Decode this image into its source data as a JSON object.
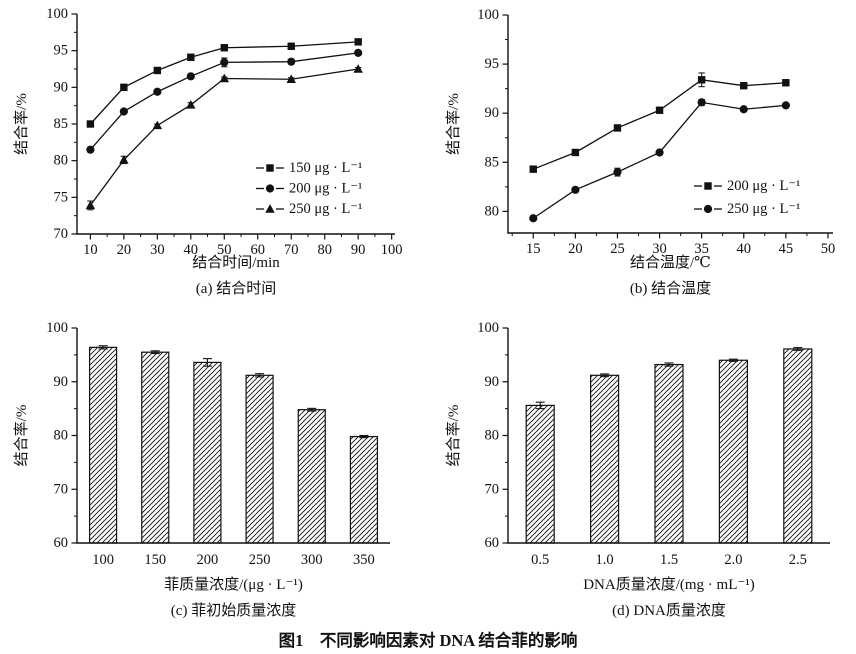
{
  "colors": {
    "ink": "#111111",
    "background": "#ffffff"
  },
  "figure": {
    "caption": "图1　不同影响因素对 DNA 结合菲的影响"
  },
  "chart_data": [
    {
      "id": "a",
      "type": "line",
      "title": "(a) 结合时间",
      "xlabel": "结合时间/min",
      "ylabel": "结合率/%",
      "xlim": [
        6,
        101
      ],
      "ylim": [
        70,
        100
      ],
      "xticks": [
        10,
        20,
        30,
        40,
        50,
        60,
        70,
        80,
        90,
        100
      ],
      "yticks": [
        70,
        75,
        80,
        85,
        90,
        95,
        100
      ],
      "grid": false,
      "legend_position": "lower right",
      "x": [
        10,
        20,
        30,
        40,
        50,
        70,
        90
      ],
      "series": [
        {
          "name": "150 μg · L⁻¹",
          "marker": "square",
          "values": [
            85.0,
            90.0,
            92.3,
            94.1,
            95.4,
            95.6,
            96.2
          ],
          "errors": [
            0.3,
            0.2,
            0.2,
            0.2,
            0.3,
            0.2,
            0.2
          ]
        },
        {
          "name": "200 μg · L⁻¹",
          "marker": "circle",
          "values": [
            81.5,
            86.7,
            89.4,
            91.5,
            93.4,
            93.5,
            94.7
          ],
          "errors": [
            0.2,
            0.2,
            0.2,
            0.2,
            0.6,
            0.2,
            0.2
          ]
        },
        {
          "name": "250 μg · L⁻¹",
          "marker": "triangle",
          "values": [
            73.9,
            80.1,
            84.8,
            87.6,
            91.2,
            91.1,
            92.5
          ],
          "errors": [
            0.6,
            0.5,
            0.2,
            0.3,
            0.2,
            0.2,
            0.2
          ]
        }
      ]
    },
    {
      "id": "b",
      "type": "line",
      "title": "(b) 结合温度",
      "xlabel": "结合温度/℃",
      "ylabel": "结合率/%",
      "xlim": [
        12,
        50.6
      ],
      "ylim": [
        77.8,
        100
      ],
      "xticks": [
        15,
        20,
        25,
        30,
        35,
        40,
        45,
        50
      ],
      "yticks": [
        80,
        85,
        90,
        95,
        100
      ],
      "grid": false,
      "legend_position": "lower right",
      "x": [
        15,
        20,
        25,
        30,
        35,
        40,
        45
      ],
      "series": [
        {
          "name": "200 μg · L⁻¹",
          "marker": "square",
          "values": [
            84.3,
            86.0,
            88.5,
            90.3,
            93.4,
            92.8,
            93.1
          ],
          "errors": [
            0.2,
            0.2,
            0.2,
            0.2,
            0.7,
            0.2,
            0.3
          ]
        },
        {
          "name": "250 μg · L⁻¹",
          "marker": "circle",
          "values": [
            79.3,
            82.2,
            84.0,
            86.0,
            91.1,
            90.4,
            90.8
          ],
          "errors": [
            0.2,
            0.2,
            0.4,
            0.2,
            0.3,
            0.2,
            0.2
          ]
        }
      ]
    },
    {
      "id": "c",
      "type": "bar",
      "title": "(c) 菲初始质量浓度",
      "xlabel": "菲质量浓度/(μg · L⁻¹)",
      "ylabel": "结合率/%",
      "ylim": [
        60,
        100
      ],
      "yticks": [
        60,
        70,
        80,
        90,
        100
      ],
      "grid": false,
      "categories": [
        "100",
        "150",
        "200",
        "250",
        "300",
        "350"
      ],
      "values": [
        96.4,
        95.5,
        93.6,
        91.2,
        84.8,
        79.8
      ],
      "errors": [
        0.3,
        0.25,
        0.7,
        0.3,
        0.25,
        0.2
      ]
    },
    {
      "id": "d",
      "type": "bar",
      "title": "(d) DNA质量浓度",
      "xlabel": "DNA质量浓度/(mg · mL⁻¹)",
      "ylabel": "结合率/%",
      "ylim": [
        60,
        100
      ],
      "yticks": [
        60,
        70,
        80,
        90,
        100
      ],
      "grid": false,
      "categories": [
        "0.5",
        "1.0",
        "1.5",
        "2.0",
        "2.5"
      ],
      "values": [
        85.6,
        91.2,
        93.2,
        94.0,
        96.1
      ],
      "errors": [
        0.6,
        0.25,
        0.3,
        0.2,
        0.25
      ]
    }
  ]
}
